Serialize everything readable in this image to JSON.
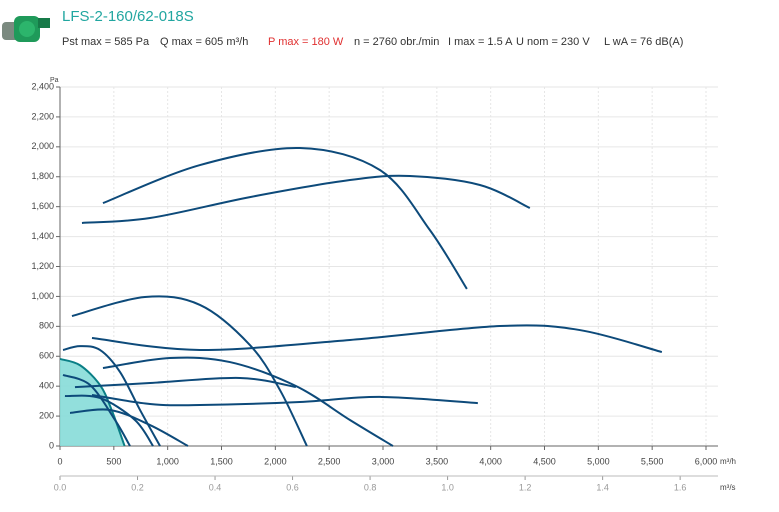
{
  "chart_data": {
    "type": "line",
    "title": "LFS-2-160/62-018S",
    "specs": [
      {
        "text": "Pst max = 585 Pa",
        "color": "#333333"
      },
      {
        "text": "Q max = 605 m³/h",
        "color": "#333333"
      },
      {
        "text": "P max = 180 W",
        "color": "#e03030"
      },
      {
        "text": "n = 2760 obr./min",
        "color": "#333333"
      },
      {
        "text": "I max = 1.5 A",
        "color": "#333333"
      },
      {
        "text": "U nom = 230 V",
        "color": "#333333"
      },
      {
        "text": "L wA = 76 dB(A)",
        "color": "#333333"
      }
    ],
    "y_label": "Pa",
    "x_label": "m³/h",
    "x2_label": "m³/s",
    "xlim": [
      0,
      6000
    ],
    "xticks": [
      0,
      500,
      {
        "value": 1000,
        "label": "1,000"
      },
      {
        "value": 1500,
        "label": "1,500"
      },
      {
        "value": 2000,
        "label": "2,000"
      },
      {
        "value": 2500,
        "label": "2,500"
      },
      {
        "value": 3000,
        "label": "3,000"
      },
      {
        "value": 3500,
        "label": "3,500"
      },
      {
        "value": 4000,
        "label": "4,000"
      },
      {
        "value": 4500,
        "label": "4,500"
      },
      {
        "value": 5000,
        "label": "5,000"
      },
      {
        "value": 5500,
        "label": "5,500"
      },
      {
        "value": 6000,
        "label": "6,000"
      }
    ],
    "x2lim": [
      0,
      1.6667
    ],
    "x2ticks": [
      {
        "value": 0,
        "label": "0.0"
      },
      0.2,
      0.4,
      0.6,
      0.8,
      {
        "value": 1,
        "label": "1.0"
      },
      1.2,
      1.4,
      1.6
    ],
    "ylim": [
      0,
      2400
    ],
    "yticks": [
      0,
      200,
      400,
      600,
      800,
      {
        "value": 1000,
        "label": "1,000"
      },
      {
        "value": 1200,
        "label": "1,200"
      },
      {
        "value": 1400,
        "label": "1,400"
      },
      {
        "value": 1600,
        "label": "1,600"
      },
      {
        "value": 1800,
        "label": "1,800"
      },
      {
        "value": 2000,
        "label": "2,000"
      },
      {
        "value": 2200,
        "label": "2,200"
      },
      {
        "value": 2400,
        "label": "2,400"
      }
    ],
    "grid": true,
    "series": [
      {
        "color": "#0a7f86",
        "fill": "#86dcd8",
        "x": [
          0,
          186,
          371,
          480,
          600
        ],
        "values": [
          582,
          540,
          408,
          241,
          0
        ]
      },
      {
        "color": "#0d4a7a",
        "x": [
          399,
          1300,
          2228,
          2971,
          3435,
          3779
        ],
        "values": [
          1624,
          1878,
          1992,
          1845,
          1444,
          1050
        ]
      },
      {
        "color": "#0d4a7a",
        "x": [
          204,
          836,
          1764,
          2693,
          3250,
          3900,
          4364
        ],
        "values": [
          1491,
          1524,
          1664,
          1778,
          1805,
          1745,
          1591
        ]
      },
      {
        "color": "#0d4a7a",
        "x": [
          111,
          789,
          1300,
          1764,
          2043,
          2293
        ],
        "values": [
          869,
          996,
          943,
          675,
          374,
          0
        ]
      },
      {
        "color": "#0d4a7a",
        "x": [
          297,
          1300,
          2693,
          4085,
          4828,
          5590
        ],
        "values": [
          722,
          642,
          709,
          802,
          775,
          628
        ]
      },
      {
        "color": "#0d4a7a",
        "x": [
          399,
          1021,
          1578,
          2191,
          2693,
          3092
        ],
        "values": [
          521,
          588,
          561,
          401,
          174,
          0
        ]
      },
      {
        "color": "#0d4a7a",
        "x": [
          139,
          836,
          1671,
          2191
        ],
        "values": [
          394,
          421,
          455,
          394
        ]
      },
      {
        "color": "#0d4a7a",
        "x": [
          297,
          836,
          1300,
          2228,
          2971,
          3881
        ],
        "values": [
          341,
          281,
          274,
          294,
          328,
          287
        ]
      },
      {
        "color": "#0d4a7a",
        "x": [
          28,
          186,
          371,
          557,
          743,
          929
        ],
        "values": [
          642,
          668,
          642,
          495,
          241,
          0
        ]
      },
      {
        "color": "#0d4a7a",
        "x": [
          46,
          371,
          696,
          864
        ],
        "values": [
          334,
          321,
          174,
          0
        ]
      },
      {
        "color": "#0d4a7a",
        "x": [
          93,
          464,
          836,
          1188
        ],
        "values": [
          221,
          241,
          140,
          0
        ]
      },
      {
        "color": "#0d4a7a",
        "x": [
          28,
          279,
          511,
          650
        ],
        "values": [
          475,
          408,
          174,
          0
        ]
      }
    ]
  }
}
